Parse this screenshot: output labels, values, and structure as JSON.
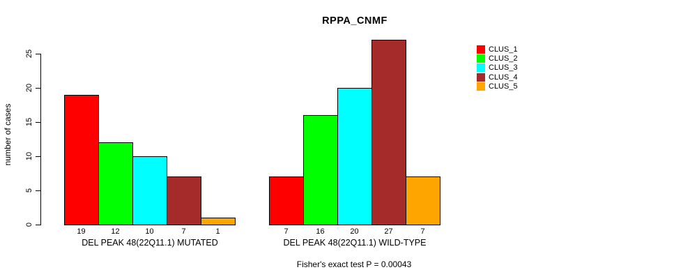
{
  "title": "RPPA_CNMF",
  "chart_data": {
    "type": "bar",
    "title": "RPPA_CNMF",
    "ylabel": "number of cases",
    "xlabel": "",
    "ylim": [
      0,
      25
    ],
    "yticks": [
      0,
      5,
      10,
      15,
      20,
      25
    ],
    "grid": false,
    "legend_position": "right",
    "categories": [
      "DEL PEAK 48(22Q11.1) MUTATED",
      "DEL PEAK 48(22Q11.1) WILD-TYPE"
    ],
    "series": [
      {
        "name": "CLUS_1",
        "color": "#FF0000",
        "values": [
          19,
          7
        ]
      },
      {
        "name": "CLUS_2",
        "color": "#00FF00",
        "values": [
          12,
          16
        ]
      },
      {
        "name": "CLUS_3",
        "color": "#00FFFF",
        "values": [
          10,
          20
        ]
      },
      {
        "name": "CLUS_4",
        "color": "#A52A2A",
        "values": [
          7,
          27
        ]
      },
      {
        "name": "CLUS_5",
        "color": "#FFA500",
        "values": [
          1,
          7
        ]
      }
    ],
    "bar_value_labels": [
      [
        "19",
        "12",
        "10",
        "7",
        "1"
      ],
      [
        "7",
        "16",
        "20",
        "27",
        "7"
      ]
    ],
    "annotation": "Fisher's exact test P = 0.00043"
  }
}
